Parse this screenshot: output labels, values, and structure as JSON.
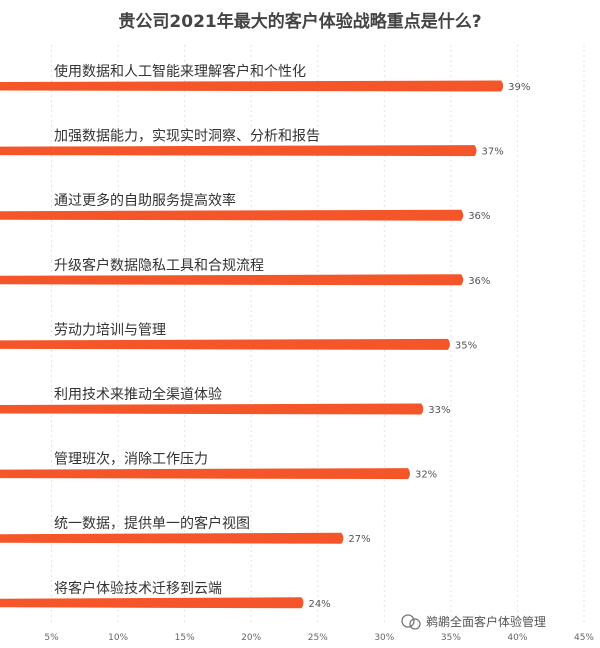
{
  "chart_data": {
    "type": "bar",
    "orientation": "horizontal",
    "title": "贵公司2021年最大的客户体验战略重点是什么?",
    "categories": [
      "使用数据和人工智能来理解客户和个性化",
      "加强数据能力，实现实时洞察、分析和报告",
      "通过更多的自助服务提高效率",
      "升级客户数据隐私工具和合规流程",
      "劳动力培训与管理",
      "利用技术来推动全渠道体验",
      "管理班次，消除工作压力",
      "统一数据，提供单一的客户视图",
      "将客户体验技术迁移到云端"
    ],
    "values": [
      39,
      37,
      36,
      36,
      35,
      33,
      32,
      27,
      24
    ],
    "value_labels": [
      "39%",
      "37%",
      "36%",
      "36%",
      "35%",
      "33%",
      "32%",
      "27%",
      "24%"
    ],
    "x_ticks": [
      "5%",
      "10%",
      "15%",
      "20%",
      "25%",
      "30%",
      "35%",
      "40%",
      "45%"
    ],
    "xlim": [
      0,
      45
    ],
    "grid": true,
    "bar_color": "#f4562a"
  },
  "watermark": {
    "text": "鹈鹕全面客户体验管理",
    "icon": "wechat-icon"
  }
}
